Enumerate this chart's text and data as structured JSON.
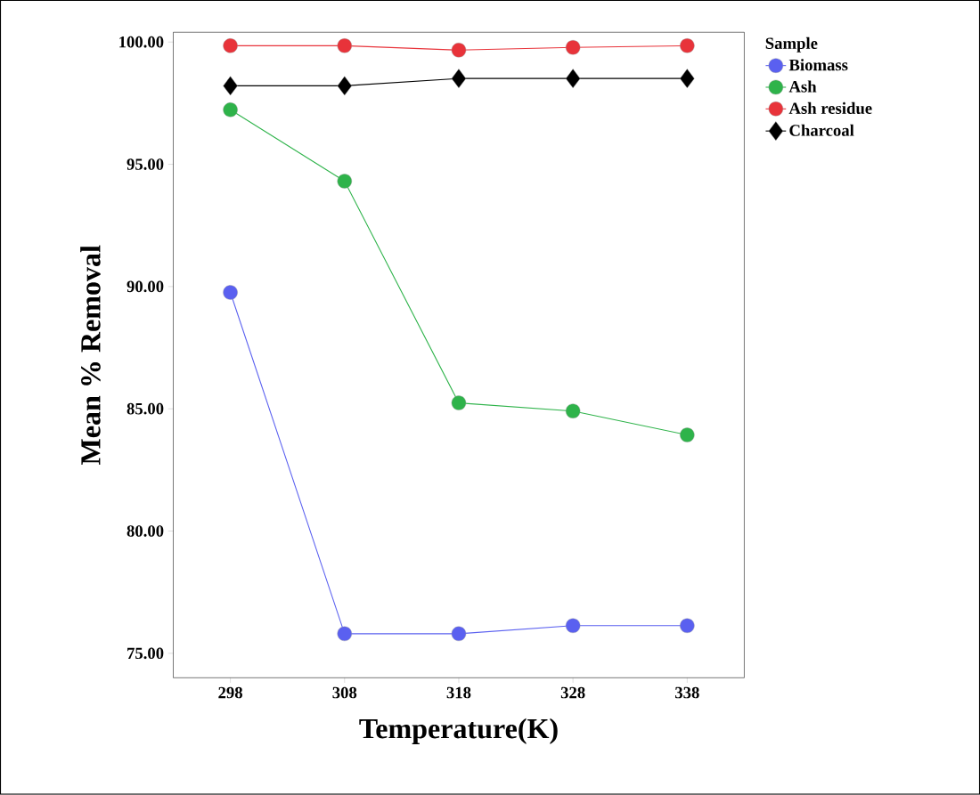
{
  "chart_data": {
    "type": "line",
    "xlabel": "Temperature(K)",
    "ylabel": "Mean % Removal",
    "legend_title": "Sample",
    "legend": "right",
    "x": [
      298,
      308,
      318,
      328,
      338
    ],
    "series": [
      {
        "name": "Biomass",
        "color": "#5a60f0",
        "marker": "circle",
        "values": [
          89.76,
          75.8,
          75.8,
          76.13,
          76.13
        ]
      },
      {
        "name": "Ash",
        "color": "#2eb34a",
        "marker": "circle",
        "values": [
          97.23,
          94.31,
          85.24,
          84.91,
          83.93
        ]
      },
      {
        "name": "Ash residue",
        "color": "#e8333a",
        "marker": "circle",
        "values": [
          99.85,
          99.85,
          99.67,
          99.78,
          99.85
        ]
      },
      {
        "name": "Charcoal",
        "color": "#000000",
        "marker": "diamond",
        "values": [
          98.21,
          98.21,
          98.51,
          98.51,
          98.51
        ]
      }
    ],
    "xlim": [
      293,
      343
    ],
    "ylim": [
      74,
      100.4
    ],
    "xticks": [
      298,
      308,
      318,
      328,
      338
    ],
    "yticks": [
      {
        "value": 75,
        "label": "75.00"
      },
      {
        "value": 80,
        "label": "80.00"
      },
      {
        "value": 85,
        "label": "85.00"
      },
      {
        "value": 90,
        "label": "90.00"
      },
      {
        "value": 95,
        "label": "95.00"
      },
      {
        "value": 100,
        "label": "100.00"
      }
    ],
    "grid": false,
    "line_style": "solid"
  }
}
